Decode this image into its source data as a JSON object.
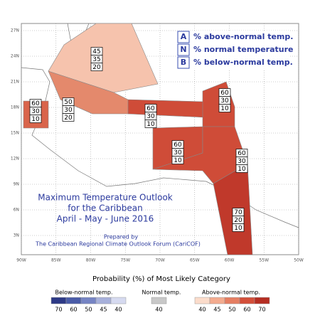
{
  "map": {
    "lat_labels": [
      "27N",
      "24N",
      "21N",
      "18N",
      "15N",
      "12N",
      "9N",
      "6N",
      "3N"
    ],
    "lon_labels": [
      "90W",
      "85W",
      "80W",
      "75W",
      "70W",
      "65W",
      "60W",
      "55W",
      "50W"
    ],
    "key": [
      {
        "letter": "A",
        "text": "% above-normal temp."
      },
      {
        "letter": "N",
        "text": "% normal temperature"
      },
      {
        "letter": "B",
        "text": "% below-normal temp."
      }
    ],
    "title_lines": [
      "Maximum Temperature Outlook",
      "for the Caribbean",
      "April - May - June 2016"
    ],
    "credit_lines": [
      "Prepared by",
      "The Caribbean Regional Climate Outlook Forum (CariCOF)"
    ],
    "regions": [
      {
        "above": 45,
        "normal": 35,
        "below": 20
      },
      {
        "above": 50,
        "normal": 30,
        "below": 20
      },
      {
        "above": 60,
        "normal": 30,
        "below": 10
      },
      {
        "above": 60,
        "normal": 30,
        "below": 10
      },
      {
        "above": 60,
        "normal": 30,
        "below": 10
      },
      {
        "above": 60,
        "normal": 30,
        "below": 10
      },
      {
        "above": 60,
        "normal": 30,
        "below": 10
      },
      {
        "above": 70,
        "normal": 20,
        "below": 10
      }
    ]
  },
  "legend": {
    "title": "Probability (%) of Most Likely Category",
    "below": {
      "label": "Below-normal temp.",
      "levels": [
        70,
        60,
        50,
        45,
        40
      ]
    },
    "normal": {
      "label": "Normal temp.",
      "levels": [
        40
      ]
    },
    "above": {
      "label": "Above-normal temp.",
      "levels": [
        40,
        45,
        50,
        60,
        70
      ]
    }
  }
}
